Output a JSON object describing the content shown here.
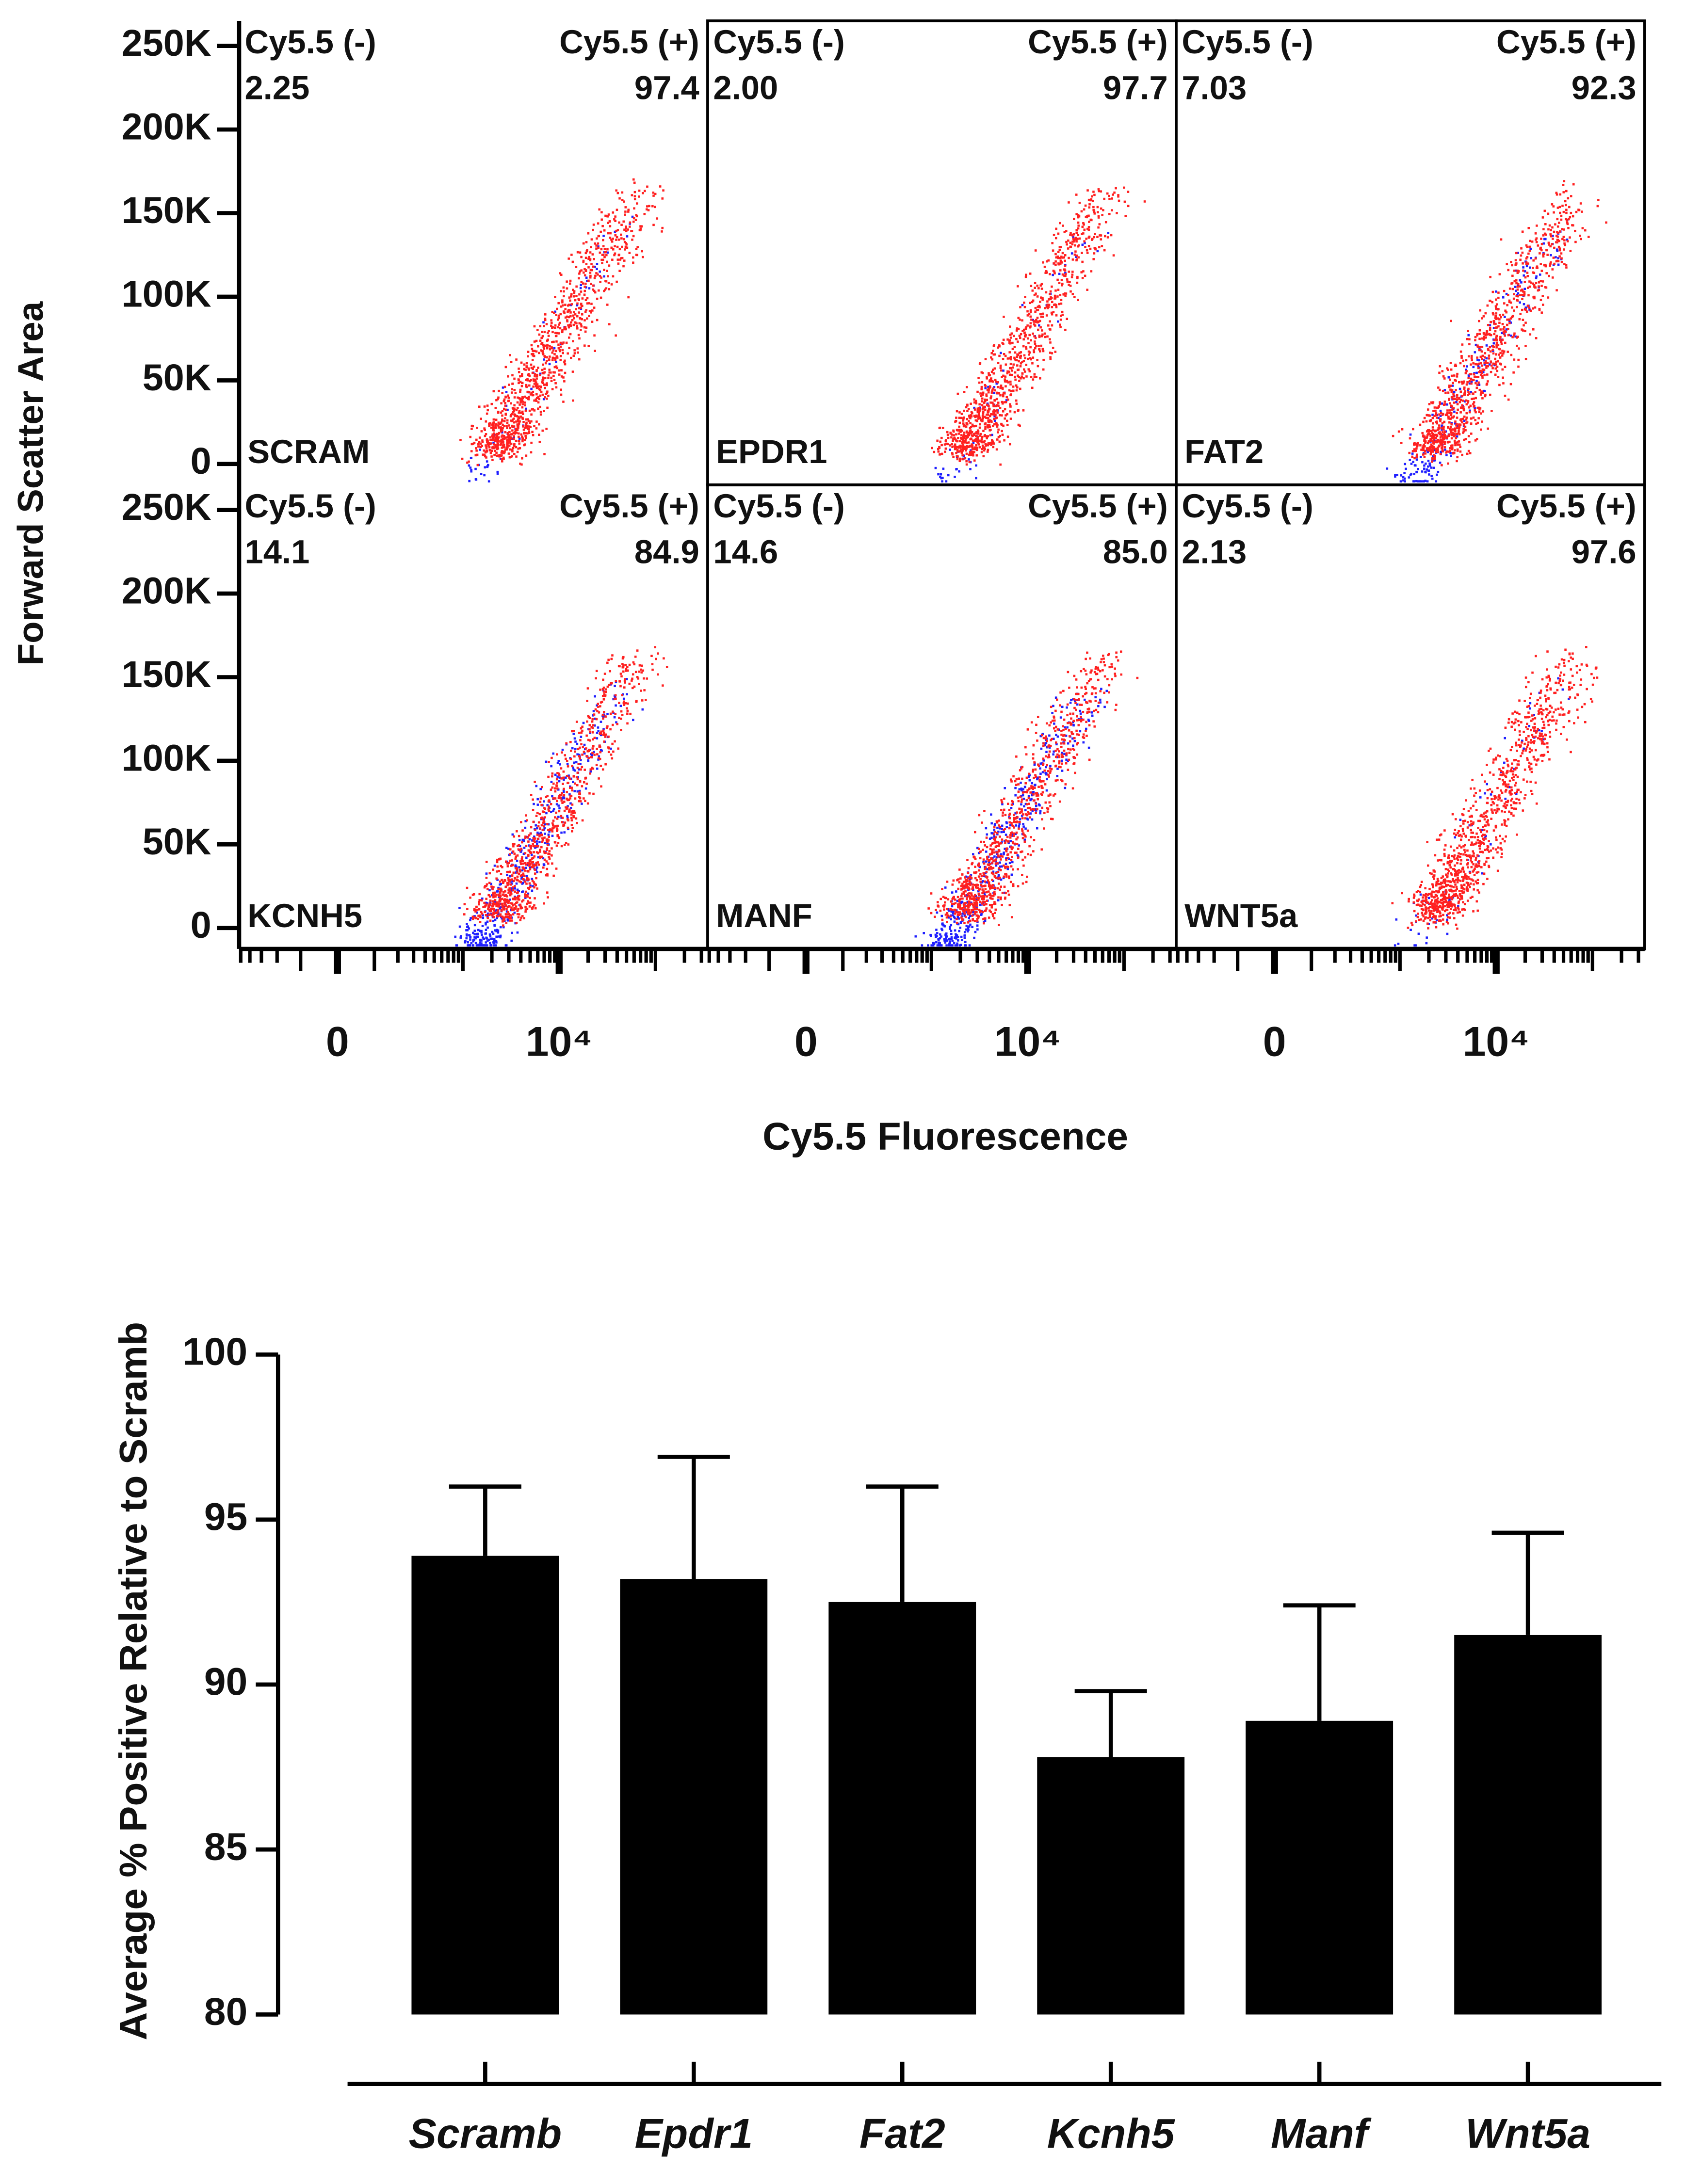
{
  "chart_data": [
    {
      "type": "scatter",
      "ylabel": "Forward Scatter Area",
      "xlabel": "Cy5.5 Fluorescence",
      "ylim": [
        -12500,
        265000
      ],
      "yticks": [
        0,
        {
          "value": 50000,
          "label": "50K"
        },
        {
          "value": 100000,
          "label": "100K"
        },
        {
          "value": 150000,
          "label": "150K"
        },
        {
          "value": 200000,
          "label": "200K"
        },
        {
          "value": 250000,
          "label": "250K"
        }
      ],
      "xscale": "asinh",
      "xlim": [
        -520,
        348000
      ],
      "xticks": [
        0,
        {
          "value": 10000,
          "label": "10⁴"
        }
      ],
      "gate_names": [
        "Cy5.5 (-)",
        "Cy5.5 (+)"
      ],
      "gate_colors": [
        "#1f1fff",
        "#ff2020"
      ],
      "panels": [
        {
          "name": "SCRAM",
          "values": [
            2.25,
            97.4
          ],
          "value_labels": [
            "2.25",
            "97.4"
          ]
        },
        {
          "name": "EPDR1",
          "values": [
            2.0,
            97.7
          ],
          "value_labels": [
            "2.00",
            "97.7"
          ]
        },
        {
          "name": "FAT2",
          "values": [
            7.03,
            92.3
          ],
          "value_labels": [
            "7.03",
            "92.3"
          ]
        },
        {
          "name": "KCNH5",
          "values": [
            14.1,
            84.9
          ],
          "value_labels": [
            "14.1",
            "84.9"
          ]
        },
        {
          "name": "MANF",
          "values": [
            14.6,
            85.0
          ],
          "value_labels": [
            "14.6",
            "85.0"
          ]
        },
        {
          "name": "WNT5a",
          "values": [
            2.13,
            97.6
          ],
          "value_labels": [
            "2.13",
            "97.6"
          ]
        }
      ]
    },
    {
      "type": "bar",
      "ylabel": "Average % Positive Relative to Scramb",
      "categories": [
        "Scramb",
        "Epdr1",
        "Fat2",
        "Kcnh5",
        "Manf",
        "Wnt5a"
      ],
      "values": [
        93.9,
        93.2,
        92.5,
        87.8,
        88.9,
        91.5
      ],
      "errors": [
        2.1,
        3.7,
        3.5,
        2.0,
        3.5,
        3.1
      ],
      "color": "#000000",
      "ylim": [
        80,
        100
      ],
      "yticks": [
        80,
        85,
        90,
        95,
        100
      ]
    }
  ]
}
